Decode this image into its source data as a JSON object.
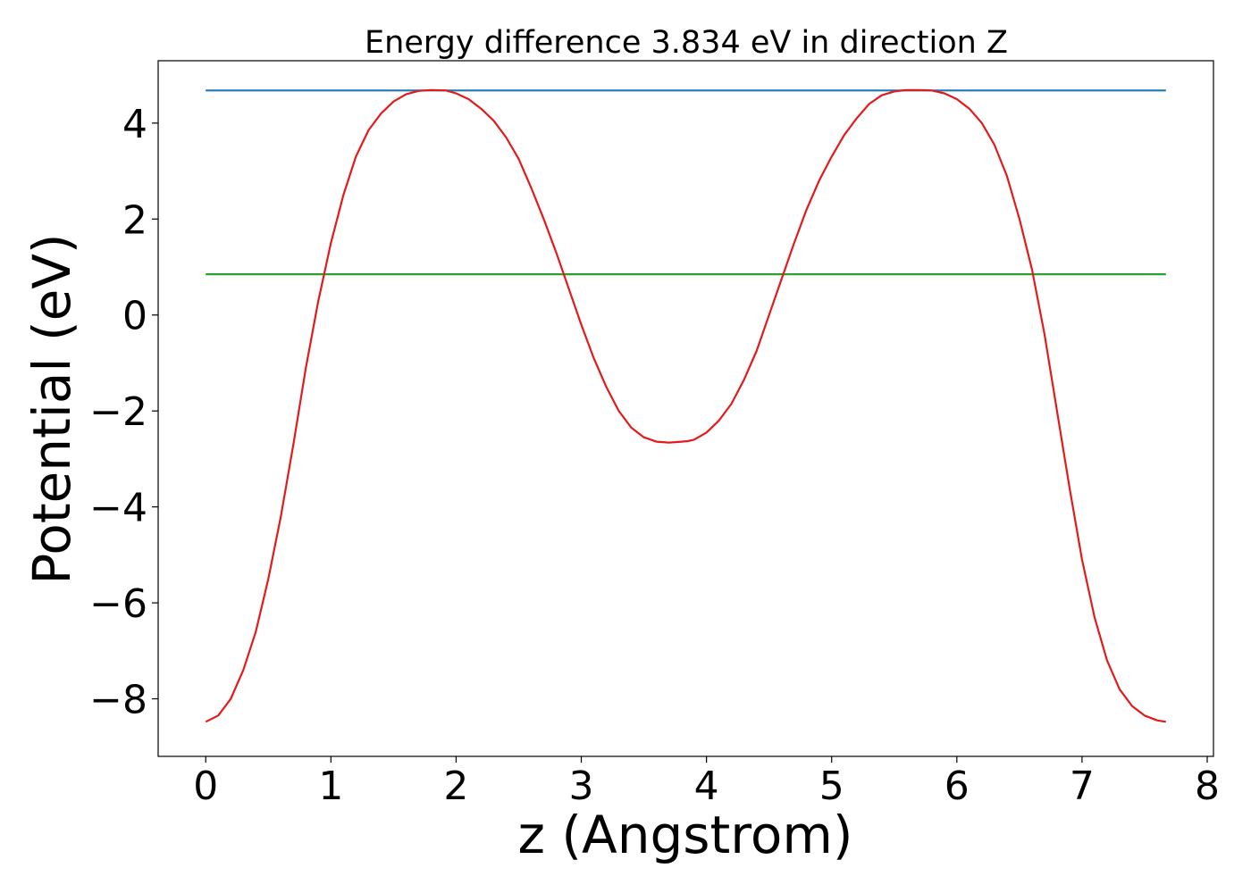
{
  "chart_data": {
    "type": "line",
    "title": "Energy difference 3.834 eV in direction Z",
    "xlabel": "z (Angstrom)",
    "ylabel": "Potential (eV)",
    "xlim": [
      -0.38,
      8.05
    ],
    "ylim": [
      -9.2,
      5.3
    ],
    "xticks": [
      0,
      1,
      2,
      3,
      4,
      5,
      6,
      7,
      8
    ],
    "xtick_labels": [
      "0",
      "1",
      "2",
      "3",
      "4",
      "5",
      "6",
      "7",
      "8"
    ],
    "yticks": [
      -8,
      -6,
      -4,
      -2,
      0,
      2,
      4
    ],
    "ytick_labels": [
      "−8",
      "−6",
      "−4",
      "−2",
      "0",
      "2",
      "4"
    ],
    "grid": false,
    "series": [
      {
        "color": "#1f77b4",
        "x": [
          0,
          7.67
        ],
        "y": [
          4.68,
          4.68
        ]
      },
      {
        "color": "#2ca02c",
        "x": [
          0,
          7.67
        ],
        "y": [
          0.85,
          0.85
        ]
      },
      {
        "color": "#e31a1c",
        "x": [
          0,
          0.1,
          0.2,
          0.3,
          0.4,
          0.5,
          0.6,
          0.7,
          0.8,
          0.9,
          1.0,
          1.1,
          1.2,
          1.3,
          1.4,
          1.5,
          1.6,
          1.7,
          1.8,
          1.92,
          2.0,
          2.1,
          2.2,
          2.3,
          2.4,
          2.5,
          2.6,
          2.7,
          2.8,
          2.9,
          3.0,
          3.1,
          3.2,
          3.3,
          3.4,
          3.5,
          3.6,
          3.7,
          3.8,
          3.85,
          3.9,
          4.0,
          4.1,
          4.2,
          4.3,
          4.4,
          4.5,
          4.6,
          4.7,
          4.8,
          4.9,
          5.0,
          5.1,
          5.2,
          5.3,
          5.4,
          5.5,
          5.6,
          5.7,
          5.8,
          5.9,
          6.0,
          6.1,
          6.2,
          6.3,
          6.4,
          6.5,
          6.6,
          6.7,
          6.8,
          6.9,
          7.0,
          7.1,
          7.2,
          7.3,
          7.4,
          7.5,
          7.6,
          7.67
        ],
        "y": [
          -8.48,
          -8.35,
          -8.0,
          -7.4,
          -6.6,
          -5.5,
          -4.2,
          -2.7,
          -1.1,
          0.3,
          1.5,
          2.5,
          3.3,
          3.85,
          4.2,
          4.45,
          4.6,
          4.67,
          4.69,
          4.68,
          4.62,
          4.5,
          4.3,
          4.05,
          3.7,
          3.25,
          2.65,
          2.0,
          1.3,
          0.55,
          -0.2,
          -0.9,
          -1.5,
          -2.0,
          -2.35,
          -2.55,
          -2.64,
          -2.66,
          -2.64,
          -2.63,
          -2.6,
          -2.45,
          -2.2,
          -1.85,
          -1.35,
          -0.75,
          0.0,
          0.75,
          1.5,
          2.2,
          2.8,
          3.3,
          3.75,
          4.1,
          4.4,
          4.58,
          4.66,
          4.69,
          4.69,
          4.68,
          4.62,
          4.5,
          4.3,
          4.0,
          3.55,
          2.9,
          2.0,
          0.95,
          -0.4,
          -2.0,
          -3.6,
          -5.1,
          -6.3,
          -7.2,
          -7.8,
          -8.15,
          -8.35,
          -8.45,
          -8.48
        ]
      }
    ]
  }
}
